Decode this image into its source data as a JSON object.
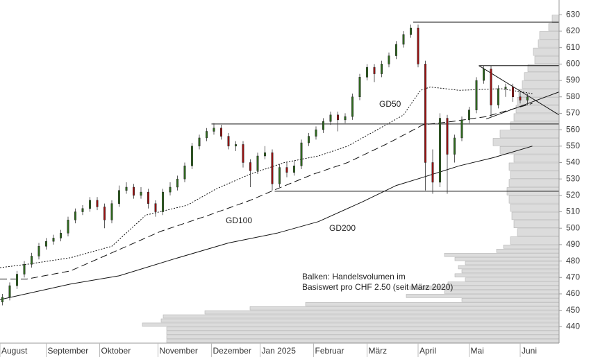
{
  "chart_data": {
    "type": "candlestick",
    "xlim": [
      0,
      230
    ],
    "ylim": [
      430,
      639
    ],
    "yticks": [
      440,
      450,
      460,
      470,
      480,
      490,
      500,
      510,
      520,
      530,
      540,
      550,
      560,
      570,
      580,
      590,
      600,
      610,
      620,
      630
    ],
    "xticks": [
      {
        "value": 0,
        "label": "August"
      },
      {
        "value": 19,
        "label": "September"
      },
      {
        "value": 41,
        "label": "Oktober"
      },
      {
        "value": 65,
        "label": "November"
      },
      {
        "value": 87,
        "label": "Dezember"
      },
      {
        "value": 107,
        "label": "Jan 2025"
      },
      {
        "value": 129,
        "label": "Februar"
      },
      {
        "value": 151,
        "label": "März"
      },
      {
        "value": 172,
        "label": "April"
      },
      {
        "value": 193,
        "label": "Mai"
      },
      {
        "value": 214,
        "label": "Juni"
      }
    ],
    "up_color": "#2f6b1f",
    "down_color": "#9b1111",
    "x": [
      1,
      4,
      7,
      10,
      13,
      16,
      19,
      22,
      25,
      28,
      31,
      34,
      37,
      40,
      43,
      46,
      49,
      52,
      55,
      58,
      61,
      64,
      67,
      70,
      73,
      76,
      79,
      82,
      85,
      88,
      91,
      94,
      97,
      100,
      103,
      106,
      109,
      112,
      115,
      118,
      121,
      124,
      127,
      130,
      133,
      136,
      139,
      142,
      145,
      148,
      151,
      154,
      157,
      160,
      163,
      166,
      169,
      172,
      175,
      178,
      181,
      184,
      187,
      190,
      193,
      196,
      199,
      202,
      205,
      208,
      211,
      214,
      217
    ],
    "open": [
      455,
      458,
      465,
      472,
      478,
      483,
      489,
      492,
      494,
      497,
      505,
      510,
      512,
      517,
      513,
      505,
      515,
      523,
      525,
      520,
      522,
      515,
      510,
      522,
      525,
      530,
      538,
      550,
      555,
      559,
      561,
      556,
      550,
      551,
      540,
      535,
      544,
      546,
      527,
      537,
      534,
      538,
      552,
      556,
      560,
      565,
      569,
      566,
      568,
      580,
      592,
      598,
      594,
      600,
      605,
      612,
      618,
      622,
      600,
      540,
      528,
      567,
      545,
      555,
      566,
      572,
      590,
      597,
      575,
      585,
      586,
      580,
      578
    ],
    "high": [
      460,
      467,
      474,
      480,
      485,
      491,
      494,
      496,
      499,
      507,
      512,
      514,
      519,
      519,
      515,
      517,
      526,
      528,
      527,
      525,
      524,
      517,
      524,
      528,
      532,
      540,
      552,
      557,
      561,
      564,
      563,
      558,
      553,
      553,
      542,
      546,
      550,
      548,
      539,
      540,
      541,
      554,
      558,
      562,
      567,
      571,
      571,
      570,
      582,
      594,
      600,
      600,
      602,
      607,
      614,
      620,
      624,
      624,
      602,
      548,
      570,
      569,
      557,
      568,
      574,
      592,
      599,
      599,
      587,
      588,
      588,
      583,
      582
    ],
    "low": [
      453,
      456,
      463,
      470,
      476,
      481,
      487,
      490,
      492,
      495,
      503,
      508,
      510,
      511,
      500,
      503,
      513,
      521,
      518,
      518,
      512,
      507,
      508,
      520,
      523,
      528,
      536,
      548,
      553,
      557,
      554,
      548,
      547,
      537,
      525,
      533,
      542,
      523,
      525,
      531,
      532,
      536,
      550,
      554,
      558,
      563,
      559,
      564,
      566,
      578,
      590,
      589,
      592,
      598,
      603,
      610,
      616,
      598,
      523,
      521,
      525,
      521,
      540,
      553,
      564,
      570,
      588,
      568,
      573,
      580,
      577,
      576,
      575
    ],
    "close": [
      458,
      465,
      472,
      478,
      483,
      489,
      492,
      494,
      497,
      505,
      510,
      512,
      517,
      513,
      505,
      515,
      523,
      525,
      520,
      522,
      515,
      510,
      522,
      525,
      530,
      538,
      550,
      555,
      559,
      561,
      556,
      550,
      551,
      540,
      535,
      544,
      546,
      527,
      537,
      534,
      538,
      552,
      556,
      560,
      565,
      569,
      566,
      568,
      580,
      592,
      598,
      594,
      600,
      605,
      612,
      618,
      622,
      600,
      540,
      528,
      567,
      545,
      555,
      566,
      572,
      590,
      597,
      575,
      585,
      586,
      580,
      578,
      580
    ],
    "moving_averages": [
      {
        "name": "GD50",
        "line_style": "dotted",
        "color": "#111111",
        "x": [
          0,
          11,
          29,
          46,
          60,
          77,
          89,
          103,
          117,
          131,
          143,
          154,
          166,
          173,
          177,
          189,
          206,
          219
        ],
        "values": [
          476,
          478,
          482,
          489,
          508,
          514,
          524,
          533,
          540,
          544,
          550,
          559,
          569,
          584,
          586,
          584,
          585,
          582
        ]
      },
      {
        "name": "GD100",
        "line_style": "dashed",
        "color": "#111111",
        "x": [
          0,
          11,
          29,
          46,
          66,
          86,
          103,
          114,
          129,
          143,
          160,
          174,
          186,
          200,
          219
        ],
        "values": [
          469,
          469,
          474,
          485,
          498,
          508,
          517,
          524,
          533,
          540,
          552,
          563,
          565,
          568,
          576
        ]
      },
      {
        "name": "GD200",
        "line_style": "solid",
        "color": "#111111",
        "x": [
          0,
          29,
          49,
          71,
          94,
          114,
          131,
          149,
          163,
          174,
          189,
          203,
          219
        ],
        "values": [
          456.5,
          466,
          471,
          481,
          491,
          497,
          504,
          516,
          526,
          531,
          538,
          543,
          550
        ]
      }
    ],
    "trend_lines": [
      {
        "x": [
          170,
          230
        ],
        "values": [
          625.5,
          625.5
        ]
      },
      {
        "x": [
          197,
          230
        ],
        "values": [
          599,
          599
        ]
      },
      {
        "x": [
          87,
          230
        ],
        "values": [
          563.5,
          563.5
        ]
      },
      {
        "x": [
          113,
          230
        ],
        "values": [
          522.5,
          522.5
        ]
      },
      {
        "x": [
          197,
          230
        ],
        "values": [
          599,
          569
        ]
      },
      {
        "x": [
          200,
          230
        ],
        "values": [
          566.5,
          583
        ]
      }
    ],
    "volume_profile": {
      "note": [
        "Balken: Handelsvolumen im",
        "Basiswert pro CHF 2.50 (seit März 2020)"
      ],
      "color": "#dcdcdc",
      "bins": [
        430,
        432.5,
        435,
        437.5,
        440,
        442.5,
        445,
        447.5,
        450,
        452.5,
        455,
        457.5,
        460,
        462.5,
        465,
        467.5,
        470,
        472.5,
        475,
        477.5,
        480,
        482.5,
        485,
        487.5,
        490,
        495,
        500,
        505,
        510,
        515,
        520,
        525,
        530,
        535,
        540,
        545,
        550,
        555,
        560,
        565,
        570,
        575,
        580,
        585,
        590,
        595,
        600,
        605,
        610,
        615,
        620,
        625,
        630
      ],
      "counts": [
        565,
        565,
        565,
        565,
        600,
        573,
        570,
        510,
        445,
        365,
        140,
        220,
        165,
        215,
        160,
        135,
        150,
        140,
        145,
        135,
        150,
        165,
        90,
        80,
        70,
        60,
        65,
        68,
        70,
        72,
        75,
        72,
        70,
        72,
        65,
        85,
        95,
        85,
        70,
        65,
        62,
        60,
        58,
        53,
        50,
        45,
        35,
        37,
        30,
        28,
        15,
        10
      ]
    }
  }
}
